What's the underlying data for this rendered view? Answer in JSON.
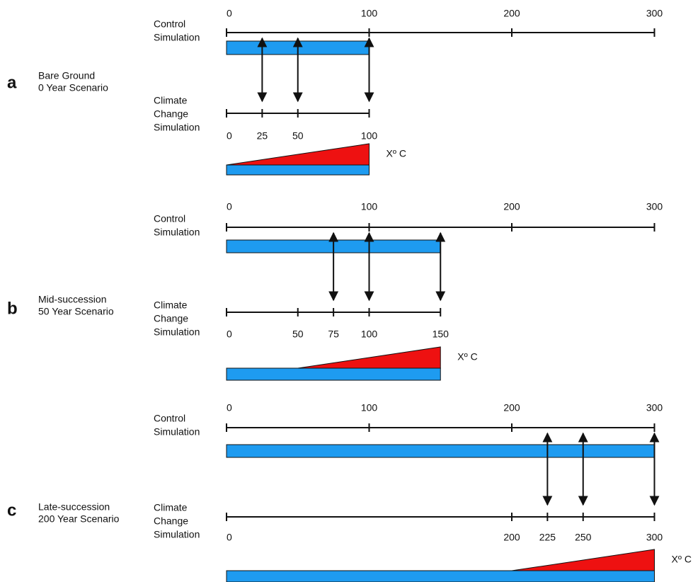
{
  "panels": [
    {
      "letter": "a",
      "scenario": [
        "Bare Ground",
        "0 Year Scenario"
      ],
      "control_label": [
        "Control",
        "Simulation"
      ],
      "control_ticks": [
        0,
        100,
        200,
        300
      ],
      "arrows": [
        25,
        50,
        100
      ],
      "climate_label": [
        "Climate",
        "Change",
        "Simulation"
      ],
      "climate_ticks": [
        0,
        25,
        50,
        100
      ],
      "warming_label": "Xº C"
    },
    {
      "letter": "b",
      "scenario": [
        "Mid-succession",
        "50 Year Scenario"
      ],
      "control_label": [
        "Control",
        "Simulation"
      ],
      "control_ticks": [
        0,
        100,
        200,
        300
      ],
      "arrows": [
        75,
        100,
        150
      ],
      "climate_label": [
        "Climate",
        "Change",
        "Simulation"
      ],
      "climate_ticks": [
        0,
        50,
        75,
        100,
        150
      ],
      "warming_label": "Xº C"
    },
    {
      "letter": "c",
      "scenario": [
        "Late-succession",
        "200 Year Scenario"
      ],
      "control_label": [
        "Control",
        "Simulation"
      ],
      "control_ticks": [
        0,
        100,
        200,
        300
      ],
      "arrows": [
        225,
        250,
        300
      ],
      "climate_label": [
        "Climate",
        "Change",
        "Simulation"
      ],
      "climate_ticks": [
        0,
        200,
        225,
        250,
        300
      ],
      "warming_label": "Xº C"
    }
  ]
}
